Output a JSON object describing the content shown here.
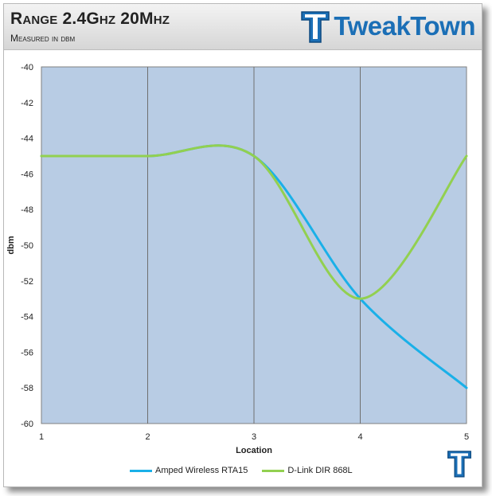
{
  "header": {
    "title": "Range 2.4Ghz 20Mhz",
    "subtitle": "Measured in dbm",
    "brand": "TweakTown"
  },
  "icons": {
    "logo": "tweaktown-tt-logo-icon",
    "corner": "tweaktown-tt-small-icon"
  },
  "colors": {
    "plot_bg": "#b8cce4",
    "series_1": "#1ab0e8",
    "series_2": "#92d050",
    "brand": "#1b6fb6"
  },
  "chart_data": {
    "type": "line",
    "title": "Range 2.4Ghz 20Mhz",
    "subtitle": "Measured in dbm",
    "xlabel": "Location",
    "ylabel": "dbm",
    "x": [
      1,
      2,
      3,
      4,
      5
    ],
    "xlim": [
      1,
      5
    ],
    "ylim": [
      -60,
      -40
    ],
    "ytick_step": 2,
    "grid": "vertical",
    "legend_position": "bottom",
    "series": [
      {
        "name": "Amped Wireless RTA15",
        "values": [
          -45,
          -45,
          -45,
          -53,
          -58
        ]
      },
      {
        "name": "D-Link DIR 868L",
        "values": [
          -45,
          -45,
          -45,
          -53,
          -45
        ]
      }
    ]
  }
}
